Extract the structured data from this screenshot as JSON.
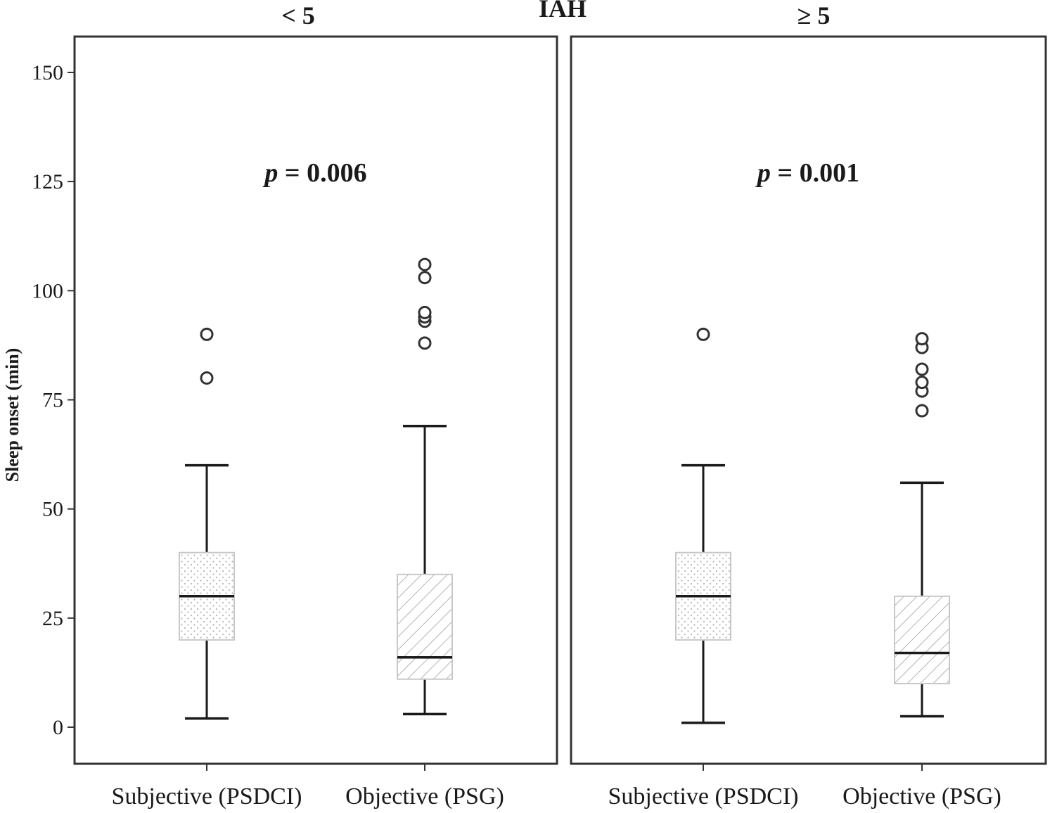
{
  "chart_data": {
    "type": "box",
    "title": "IAH",
    "ylabel": "Sleep onset (min)",
    "ylim": [
      -8,
      158
    ],
    "yticks": [
      0,
      25,
      50,
      75,
      100,
      125,
      150
    ],
    "categories": [
      "Subjective (PSDCI)",
      "Objective (PSG)"
    ],
    "panels": [
      {
        "label": "< 5",
        "annotation_prefix": "p",
        "annotation_value": " = 0.006",
        "boxes": [
          {
            "category": "Subjective (PSDCI)",
            "fill": "dots",
            "whisker_low": 2,
            "q1": 20,
            "median": 30,
            "q3": 40,
            "whisker_high": 60,
            "outliers": [
              80,
              90
            ]
          },
          {
            "category": "Objective (PSG)",
            "fill": "hatch",
            "whisker_low": 3,
            "q1": 11,
            "median": 16,
            "q3": 35,
            "whisker_high": 69,
            "outliers": [
              88,
              93,
              94,
              95,
              103,
              106
            ]
          }
        ]
      },
      {
        "label": "≥ 5",
        "annotation_prefix": "p",
        "annotation_value": " = 0.001",
        "boxes": [
          {
            "category": "Subjective (PSDCI)",
            "fill": "dots",
            "whisker_low": 1,
            "q1": 20,
            "median": 30,
            "q3": 40,
            "whisker_high": 60,
            "outliers": [
              90
            ]
          },
          {
            "category": "Objective (PSG)",
            "fill": "hatch",
            "whisker_low": 2.5,
            "q1": 10,
            "median": 17,
            "q3": 30,
            "whisker_high": 56,
            "outliers": [
              72.5,
              77,
              79,
              82,
              87,
              89
            ]
          }
        ]
      }
    ]
  },
  "colors": {
    "axis": "#333333",
    "box_stroke": "#c8c8c8",
    "box_pattern": "#b4b4b4",
    "whisker": "#1a1a1a",
    "outlier": "#333333"
  }
}
